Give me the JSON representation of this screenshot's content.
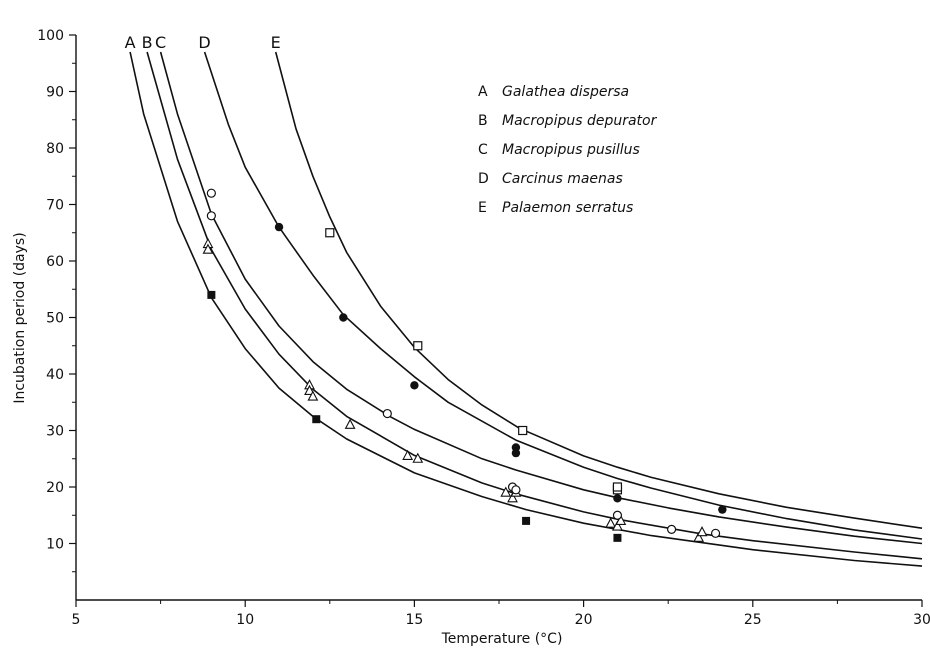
{
  "chart_data": {
    "type": "line",
    "title": "",
    "xlabel": "Temperature (°C)",
    "ylabel": "Incubation period (days)",
    "xlim": [
      5,
      30
    ],
    "ylim": [
      0,
      100
    ],
    "xticks": [
      "5",
      "10",
      "15",
      "20",
      "25",
      "30"
    ],
    "yticks": [
      "10",
      "20",
      "30",
      "40",
      "50",
      "60",
      "70",
      "80",
      "90",
      "100"
    ],
    "grid": false,
    "legend_position": "top-right",
    "legend": [
      {
        "key": "A",
        "name": "Galathea dispersa"
      },
      {
        "key": "B",
        "name": "Macropipus depurator"
      },
      {
        "key": "C",
        "name": "Macropipus pusillus"
      },
      {
        "key": "D",
        "name": "Carcinus maenas"
      },
      {
        "key": "E",
        "name": "Palaemon serratus"
      }
    ],
    "series": [
      {
        "name": "A",
        "curve": [
          [
            6.6,
            97
          ],
          [
            7,
            86
          ],
          [
            8,
            67
          ],
          [
            9,
            53.5
          ],
          [
            10,
            44.5
          ],
          [
            11,
            37.5
          ],
          [
            12,
            32.5
          ],
          [
            13,
            28.5
          ],
          [
            15,
            22.5
          ],
          [
            17,
            18.3
          ],
          [
            18.3,
            16
          ],
          [
            20,
            13.6
          ],
          [
            22,
            11.4
          ],
          [
            25,
            8.9
          ],
          [
            28,
            7
          ],
          [
            30,
            6
          ]
        ],
        "markers": {
          "shape": "filled-square",
          "points": [
            [
              9,
              54
            ],
            [
              12.1,
              32
            ],
            [
              18.3,
              14
            ],
            [
              21,
              11
            ]
          ]
        }
      },
      {
        "name": "B",
        "curve": [
          [
            7.1,
            97
          ],
          [
            8,
            78
          ],
          [
            9,
            62
          ],
          [
            10,
            51.5
          ],
          [
            11,
            43.5
          ],
          [
            12,
            37.3
          ],
          [
            13,
            32.5
          ],
          [
            15,
            25.6
          ],
          [
            17,
            20.7
          ],
          [
            18,
            18.8
          ],
          [
            20,
            15.6
          ],
          [
            21,
            14.3
          ],
          [
            23.5,
            11.7
          ],
          [
            25,
            10.5
          ],
          [
            28,
            8.5
          ],
          [
            30,
            7.3
          ]
        ],
        "markers": {
          "shape": "open-triangle",
          "points": [
            [
              8.9,
              63
            ],
            [
              8.9,
              62
            ],
            [
              11.9,
              38
            ],
            [
              11.9,
              37
            ],
            [
              12,
              36
            ],
            [
              13.1,
              31
            ],
            [
              14.8,
              25.5
            ],
            [
              15.1,
              25
            ],
            [
              17.7,
              19
            ],
            [
              17.9,
              18
            ],
            [
              18,
              19
            ],
            [
              20.8,
              13.5
            ],
            [
              21,
              13
            ],
            [
              21.1,
              14
            ],
            [
              23.4,
              11
            ],
            [
              23.5,
              12
            ]
          ]
        }
      },
      {
        "name": "C",
        "curve": [
          [
            7.5,
            97
          ],
          [
            8,
            86
          ],
          [
            9,
            68.3
          ],
          [
            10,
            56.8
          ],
          [
            11,
            48.5
          ],
          [
            12,
            42.2
          ],
          [
            13,
            37.3
          ],
          [
            14.3,
            32.4
          ],
          [
            15,
            30.2
          ],
          [
            17,
            25
          ],
          [
            18,
            23
          ],
          [
            20,
            19.5
          ],
          [
            21,
            18.1
          ],
          [
            22.5,
            16.3
          ],
          [
            24,
            14.7
          ],
          [
            26,
            12.9
          ],
          [
            28,
            11.3
          ],
          [
            30,
            10
          ]
        ],
        "markers": {
          "shape": "open-circle",
          "points": [
            [
              9,
              72
            ],
            [
              9,
              68
            ],
            [
              14.2,
              33
            ],
            [
              17.9,
              20
            ],
            [
              18,
              19.5
            ],
            [
              21,
              15
            ],
            [
              22.6,
              12.5
            ],
            [
              23.9,
              11.8
            ]
          ]
        }
      },
      {
        "name": "D",
        "curve": [
          [
            8.8,
            97
          ],
          [
            9.5,
            84.2
          ],
          [
            10,
            76.6
          ],
          [
            11,
            66
          ],
          [
            12,
            57.5
          ],
          [
            12.9,
            50.5
          ],
          [
            14,
            44.5
          ],
          [
            15,
            39.5
          ],
          [
            16,
            35
          ],
          [
            18,
            28.3
          ],
          [
            20,
            23.5
          ],
          [
            21,
            21.5
          ],
          [
            22,
            19.8
          ],
          [
            24,
            16.8
          ],
          [
            26,
            14.4
          ],
          [
            28,
            12.4
          ],
          [
            30,
            10.8
          ]
        ],
        "markers": {
          "shape": "filled-circle",
          "points": [
            [
              11,
              66
            ],
            [
              12.9,
              50
            ],
            [
              15,
              38
            ],
            [
              18,
              27
            ],
            [
              18,
              26
            ],
            [
              21,
              18
            ],
            [
              24.1,
              16
            ]
          ]
        }
      },
      {
        "name": "E",
        "curve": [
          [
            10.9,
            97
          ],
          [
            11.5,
            83.4
          ],
          [
            12,
            75
          ],
          [
            12.5,
            67.8
          ],
          [
            13,
            61.5
          ],
          [
            14,
            52
          ],
          [
            15,
            44.7
          ],
          [
            16,
            39
          ],
          [
            17,
            34.5
          ],
          [
            18.1,
            30.4
          ],
          [
            20,
            25.5
          ],
          [
            21,
            23.5
          ],
          [
            22,
            21.7
          ],
          [
            24,
            18.8
          ],
          [
            26,
            16.4
          ],
          [
            28,
            14.5
          ],
          [
            30,
            12.7
          ]
        ],
        "markers": {
          "shape": "open-square",
          "points": [
            [
              12.5,
              65
            ],
            [
              15.1,
              45
            ],
            [
              18.2,
              30
            ],
            [
              21,
              19.5
            ],
            [
              21,
              20
            ]
          ]
        }
      }
    ]
  }
}
